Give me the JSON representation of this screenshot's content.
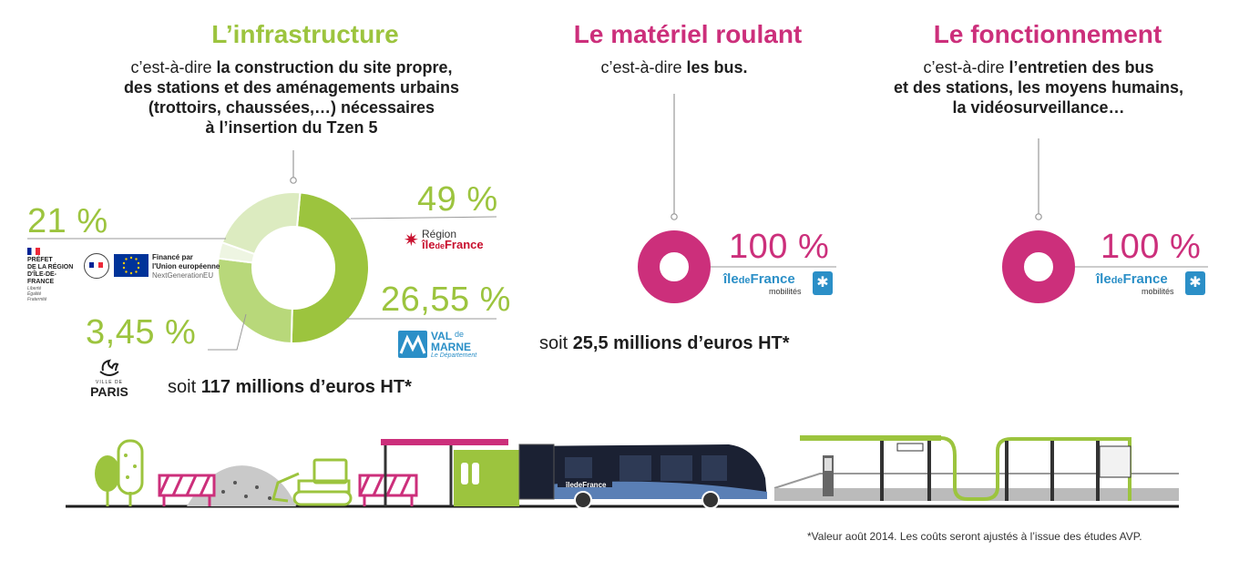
{
  "colors": {
    "green": "#9cc43e",
    "green_mid": "#b8d87a",
    "green_light": "#dcebc0",
    "green_pale": "#eef5e2",
    "magenta": "#cc2f7b",
    "grey_line": "#999999",
    "text": "#1e1e1e"
  },
  "infrastructure": {
    "title": "L’infrastructure",
    "subtitle_prefix": "c’est-à-dire ",
    "subtitle_bold": "la construction du site propre,\ndes stations et des aménagements urbains\n(trottoirs, chaussées,…) nécessaires\nà l’insertion du Tzen 5",
    "total_prefix": "soit ",
    "total_bold": "117 millions d’euros HT*",
    "shares": [
      {
        "label": "49 %",
        "value": 49,
        "funder": "Région Île-de-France"
      },
      {
        "label": "26,55 %",
        "value": 26.55,
        "funder": "Val de Marne Le Département"
      },
      {
        "label": "3,45 %",
        "value": 3.45,
        "funder": "Ville de Paris"
      },
      {
        "label": "21 %",
        "value": 21,
        "funder": "Préfet de la région d'Île-de-France / Union européenne"
      }
    ]
  },
  "rolling_stock": {
    "title": "Le matériel roulant",
    "subtitle_prefix": "c’est-à-dire ",
    "subtitle_bold": "les bus.",
    "share_label": "100 %",
    "share_value": 100,
    "total_prefix": "soit ",
    "total_bold": "25,5 millions d’euros HT*"
  },
  "operation": {
    "title": "Le fonctionnement",
    "subtitle_prefix": "c’est-à-dire ",
    "subtitle_bold": "l’entretien des bus\net des stations, les moyens humains,\nla vidéosurveillance…",
    "share_label": "100 %",
    "share_value": 100
  },
  "logos": {
    "region_idf_top": "Région",
    "region_idf_bottom_a": "île",
    "region_idf_bottom_b": "de",
    "region_idf_bottom_c": "France",
    "val_de_marne_a": "VAL",
    "val_de_marne_b": "de",
    "val_de_marne_c": "MARNE",
    "val_de_marne_d": "Le Département",
    "paris_small": "VILLE DE",
    "paris": "PARIS",
    "prefet": "PRÉFET\nDE LA RÉGION\nD'ÎLE-DE-FRANCE",
    "prefet_motto": "Liberté\nÉgalité\nFraternité",
    "eu_line1": "Financé par",
    "eu_line2": "l'Union européenne",
    "eu_line3": "NextGenerationEU",
    "idfm_a": "île",
    "idfm_b": "de",
    "idfm_c": "France",
    "idfm_sub": "mobilités",
    "bus_brand": "îledeFrance"
  },
  "footnote": "*Valeur août 2014. Les coûts seront ajustés à l’issue des études AVP."
}
